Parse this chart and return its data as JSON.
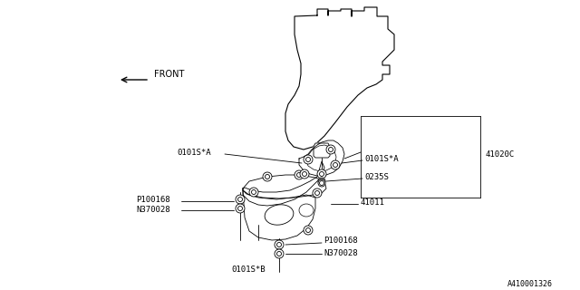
{
  "bg_color": "#ffffff",
  "line_color": "#000000",
  "text_color": "#000000",
  "part_id": "A410001326",
  "labels": {
    "FRONT": "FRONT",
    "41020C": "41020C",
    "0101SA_left": "0101S*A",
    "0101SA_right": "0101S*A",
    "0235S": "0235S",
    "41011": "41011",
    "P100168_left": "P100168",
    "N370028_left": "N370028",
    "0101SB": "0101S*B",
    "P100168_right": "P100168",
    "N370028_right": "N370028"
  }
}
